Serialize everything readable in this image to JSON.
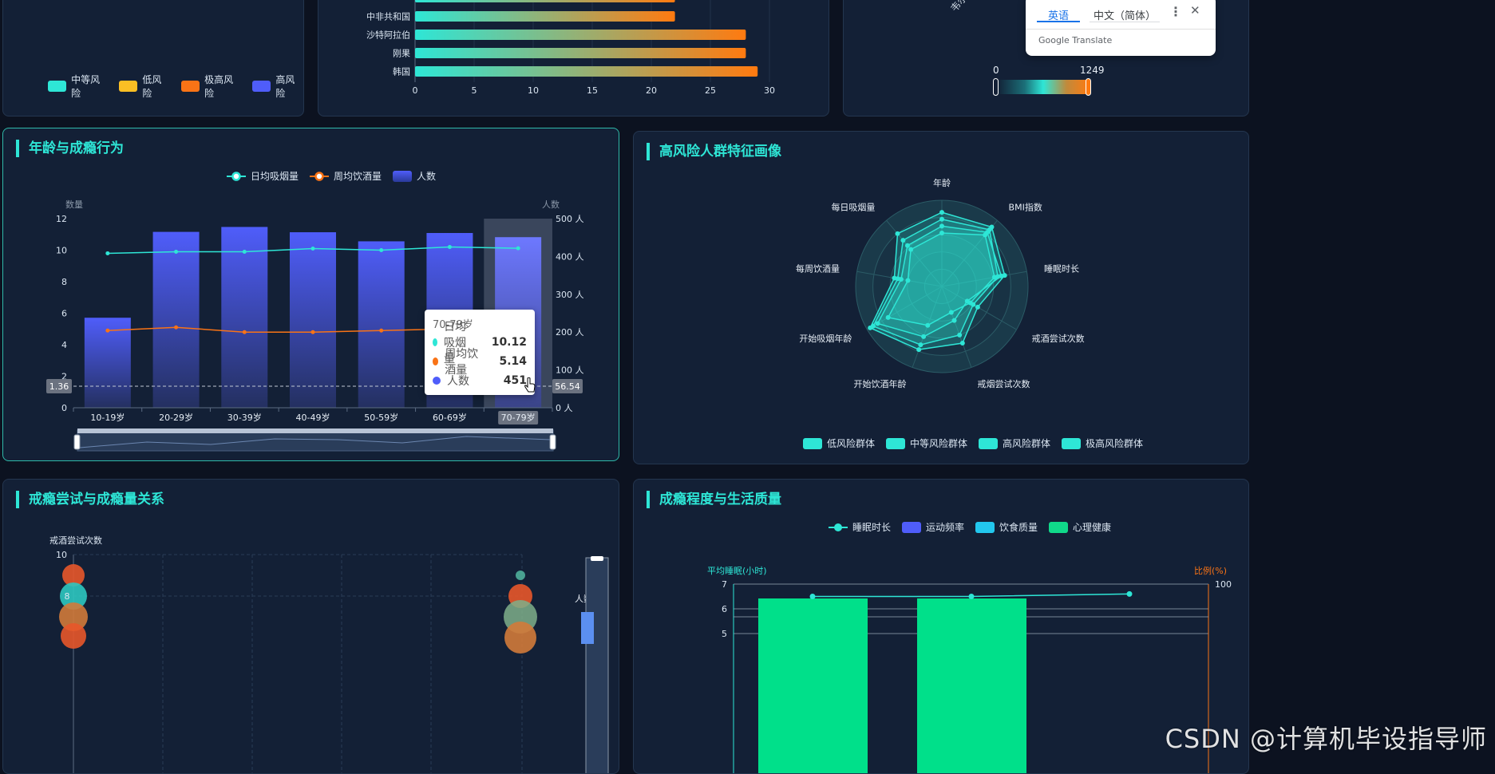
{
  "panel_risk_legend": {
    "items": [
      {
        "label": "中等风险",
        "color": "#2ee6d6"
      },
      {
        "label": "低风险",
        "color": "#fbbf24"
      },
      {
        "label": "极高风险",
        "color": "#f97316"
      },
      {
        "label": "高风险",
        "color": "#4f5dfa"
      }
    ]
  },
  "panel_country_bars": {
    "chart_data": {
      "type": "bar",
      "orientation": "horizontal",
      "categories": [
        "中非共和国",
        "沙特阿拉伯",
        "刚果",
        "韩国"
      ],
      "values": [
        22,
        28,
        28,
        29
      ],
      "partial_top_value": 22,
      "xlim": [
        0,
        30
      ],
      "xticks": [
        "0",
        "5",
        "10",
        "15",
        "20",
        "25",
        "30"
      ],
      "colors": {
        "start": "#2ee6d6",
        "end": "#ff7a10"
      }
    }
  },
  "panel_map": {
    "visual_map": {
      "min_label": "0",
      "max_label": "1249"
    },
    "rotated_label": "韦尔"
  },
  "google_translate": {
    "tab_active": "英语",
    "tab_other": "中文（简体）",
    "brand": "Google Translate",
    "more_icon": "more-vert-icon",
    "close_icon": "close-icon"
  },
  "panel_age": {
    "title": "年龄与成瘾行为",
    "legend": [
      {
        "label": "日均吸烟量",
        "color": "#2ee6d6"
      },
      {
        "label": "周均饮酒量",
        "color": "#f97316"
      },
      {
        "label": "人数",
        "color": "#4f5dfa"
      }
    ],
    "chart_data": {
      "type": "bar+line",
      "categories": [
        "10-19岁",
        "20-29岁",
        "30-39岁",
        "40-49岁",
        "50-59岁",
        "60-69岁",
        "70-79岁"
      ],
      "series": [
        {
          "name": "人数",
          "type": "bar",
          "axis": "right",
          "values": [
            238,
            465,
            478,
            464,
            440,
            462,
            451
          ]
        },
        {
          "name": "日均吸烟量",
          "type": "line",
          "axis": "left",
          "values": [
            9.8,
            9.9,
            9.9,
            10.1,
            10.0,
            10.2,
            10.12
          ]
        },
        {
          "name": "周均饮酒量",
          "type": "line",
          "axis": "left",
          "values": [
            4.9,
            5.1,
            4.8,
            4.8,
            4.9,
            5.0,
            5.14
          ]
        }
      ],
      "ylabel_left": "数量",
      "ylabel_right": "人数",
      "ylim_left": [
        0,
        12
      ],
      "yticks_left": [
        "0",
        "2",
        "4",
        "6",
        "8",
        "10",
        "12"
      ],
      "ylim_right": [
        0,
        500
      ],
      "yticks_right": [
        "0 人",
        "100 人",
        "200 人",
        "300 人",
        "400 人",
        "500 人"
      ],
      "highlighted_category": "70-79岁",
      "crosshair": {
        "left_value": "1.36",
        "right_value": "56.54"
      }
    },
    "tooltip": {
      "title": "70-79岁",
      "rows": [
        {
          "label": "日均吸烟量",
          "value": "10.12",
          "color": "#2ee6d6"
        },
        {
          "label": "周均饮酒量",
          "value": "5.14",
          "color": "#f97316"
        },
        {
          "label": "人数",
          "value": "451",
          "color": "#4f5dfa"
        }
      ]
    }
  },
  "panel_radar": {
    "title": "高风险人群特征画像",
    "chart_data": {
      "type": "radar",
      "indicators": [
        "年龄",
        "BMI指数",
        "睡眠时长",
        "戒酒尝试次数",
        "戒烟尝试次数",
        "开始饮酒年龄",
        "开始吸烟年龄",
        "每周饮酒量",
        "每日吸烟量"
      ],
      "series": [
        {
          "name": "低风险群体",
          "values": [
            0.62,
            0.78,
            0.62,
            0.38,
            0.32,
            0.48,
            0.72,
            0.4,
            0.56
          ]
        },
        {
          "name": "中等风险群体",
          "values": [
            0.7,
            0.82,
            0.7,
            0.34,
            0.42,
            0.62,
            0.86,
            0.48,
            0.62
          ]
        },
        {
          "name": "高风险群体",
          "values": [
            0.78,
            0.86,
            0.66,
            0.42,
            0.6,
            0.72,
            0.92,
            0.52,
            0.7
          ]
        },
        {
          "name": "极高风险群体",
          "values": [
            0.86,
            0.9,
            0.74,
            0.48,
            0.7,
            0.78,
            0.96,
            0.56,
            0.8
          ]
        }
      ]
    },
    "legend": [
      {
        "label": "低风险群体",
        "color": "#2ee6d6"
      },
      {
        "label": "中等风险群体",
        "color": "#2ee6d6"
      },
      {
        "label": "高风险群体",
        "color": "#2ee6d6"
      },
      {
        "label": "极高风险群体",
        "color": "#2ee6d6"
      }
    ]
  },
  "panel_quit": {
    "title": "戒瘾尝试与成瘾量关系",
    "chart_data": {
      "type": "scatter",
      "ylabel": "戒酒尝试次数",
      "yticks": [
        "10",
        "8"
      ],
      "visual_map_label": "人数多"
    }
  },
  "panel_quality": {
    "title": "成瘾程度与生活质量",
    "legend": [
      {
        "label": "睡眠时长",
        "color": "#2ee6d6"
      },
      {
        "label": "运动频率",
        "color": "#4f5dfa"
      },
      {
        "label": "饮食质量",
        "color": "#22c7ee"
      },
      {
        "label": "心理健康",
        "color": "#10d98a"
      }
    ],
    "chart_data": {
      "type": "bar+line",
      "ylabel_left": "平均睡眠(小时)",
      "ylabel_right": "比例(%)",
      "yticks_left": [
        "7",
        "6",
        "5"
      ],
      "yticks_right": [
        "100"
      ],
      "line_values": [
        6.5,
        6.5,
        6.6
      ]
    }
  },
  "watermark": "CSDN @计算机毕设指导师"
}
